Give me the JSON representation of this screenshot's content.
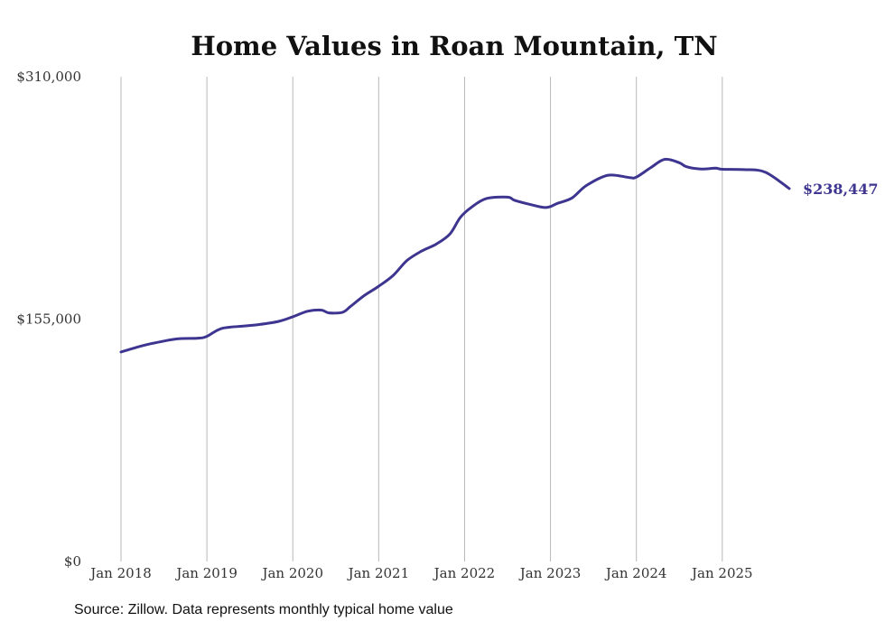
{
  "chart_data": {
    "type": "line",
    "title": "Home Values in Roan Mountain, TN",
    "xlabel": "",
    "ylabel": "",
    "ylim": [
      0,
      310000
    ],
    "xlim": [
      2018.0,
      2025.78
    ],
    "yticks": [
      {
        "value": 0,
        "label": "$0"
      },
      {
        "value": 155000,
        "label": "$155,000"
      },
      {
        "value": 310000,
        "label": "$310,000"
      }
    ],
    "xticks": [
      {
        "value": 2018,
        "label": "Jan 2018"
      },
      {
        "value": 2019,
        "label": "Jan 2019"
      },
      {
        "value": 2020,
        "label": "Jan 2020"
      },
      {
        "value": 2021,
        "label": "Jan 2021"
      },
      {
        "value": 2022,
        "label": "Jan 2022"
      },
      {
        "value": 2023,
        "label": "Jan 2023"
      },
      {
        "value": 2024,
        "label": "Jan 2024"
      },
      {
        "value": 2025,
        "label": "Jan 2025"
      }
    ],
    "grid": "vertical",
    "series": [
      {
        "name": "Typical home value",
        "color": "#3d3590",
        "x": [
          2018.0,
          2018.25,
          2018.5,
          2018.67,
          2018.9,
          2019.0,
          2019.17,
          2019.42,
          2019.6,
          2019.83,
          2020.0,
          2020.17,
          2020.33,
          2020.42,
          2020.58,
          2020.67,
          2020.83,
          2021.0,
          2021.17,
          2021.33,
          2021.5,
          2021.67,
          2021.83,
          2021.95,
          2022.08,
          2022.25,
          2022.5,
          2022.58,
          2022.75,
          2022.92,
          2023.0,
          2023.08,
          2023.25,
          2023.42,
          2023.67,
          2023.92,
          2024.0,
          2024.17,
          2024.33,
          2024.5,
          2024.58,
          2024.75,
          2024.92,
          2025.0,
          2025.25,
          2025.5,
          2025.78
        ],
        "values": [
          134000,
          138000,
          141000,
          142500,
          142800,
          144000,
          149000,
          150500,
          151500,
          153500,
          156500,
          160000,
          160800,
          159000,
          159400,
          163000,
          170000,
          176000,
          183000,
          192500,
          198500,
          203000,
          209500,
          220000,
          226500,
          232000,
          233000,
          231000,
          228500,
          226400,
          227000,
          229000,
          232500,
          240500,
          247000,
          245500,
          245800,
          252000,
          257200,
          255000,
          252500,
          251000,
          251500,
          250800,
          250600,
          249000,
          238447
        ]
      }
    ],
    "end_label": "$238,447"
  },
  "source": "Source: Zillow. Data represents monthly typical home value"
}
